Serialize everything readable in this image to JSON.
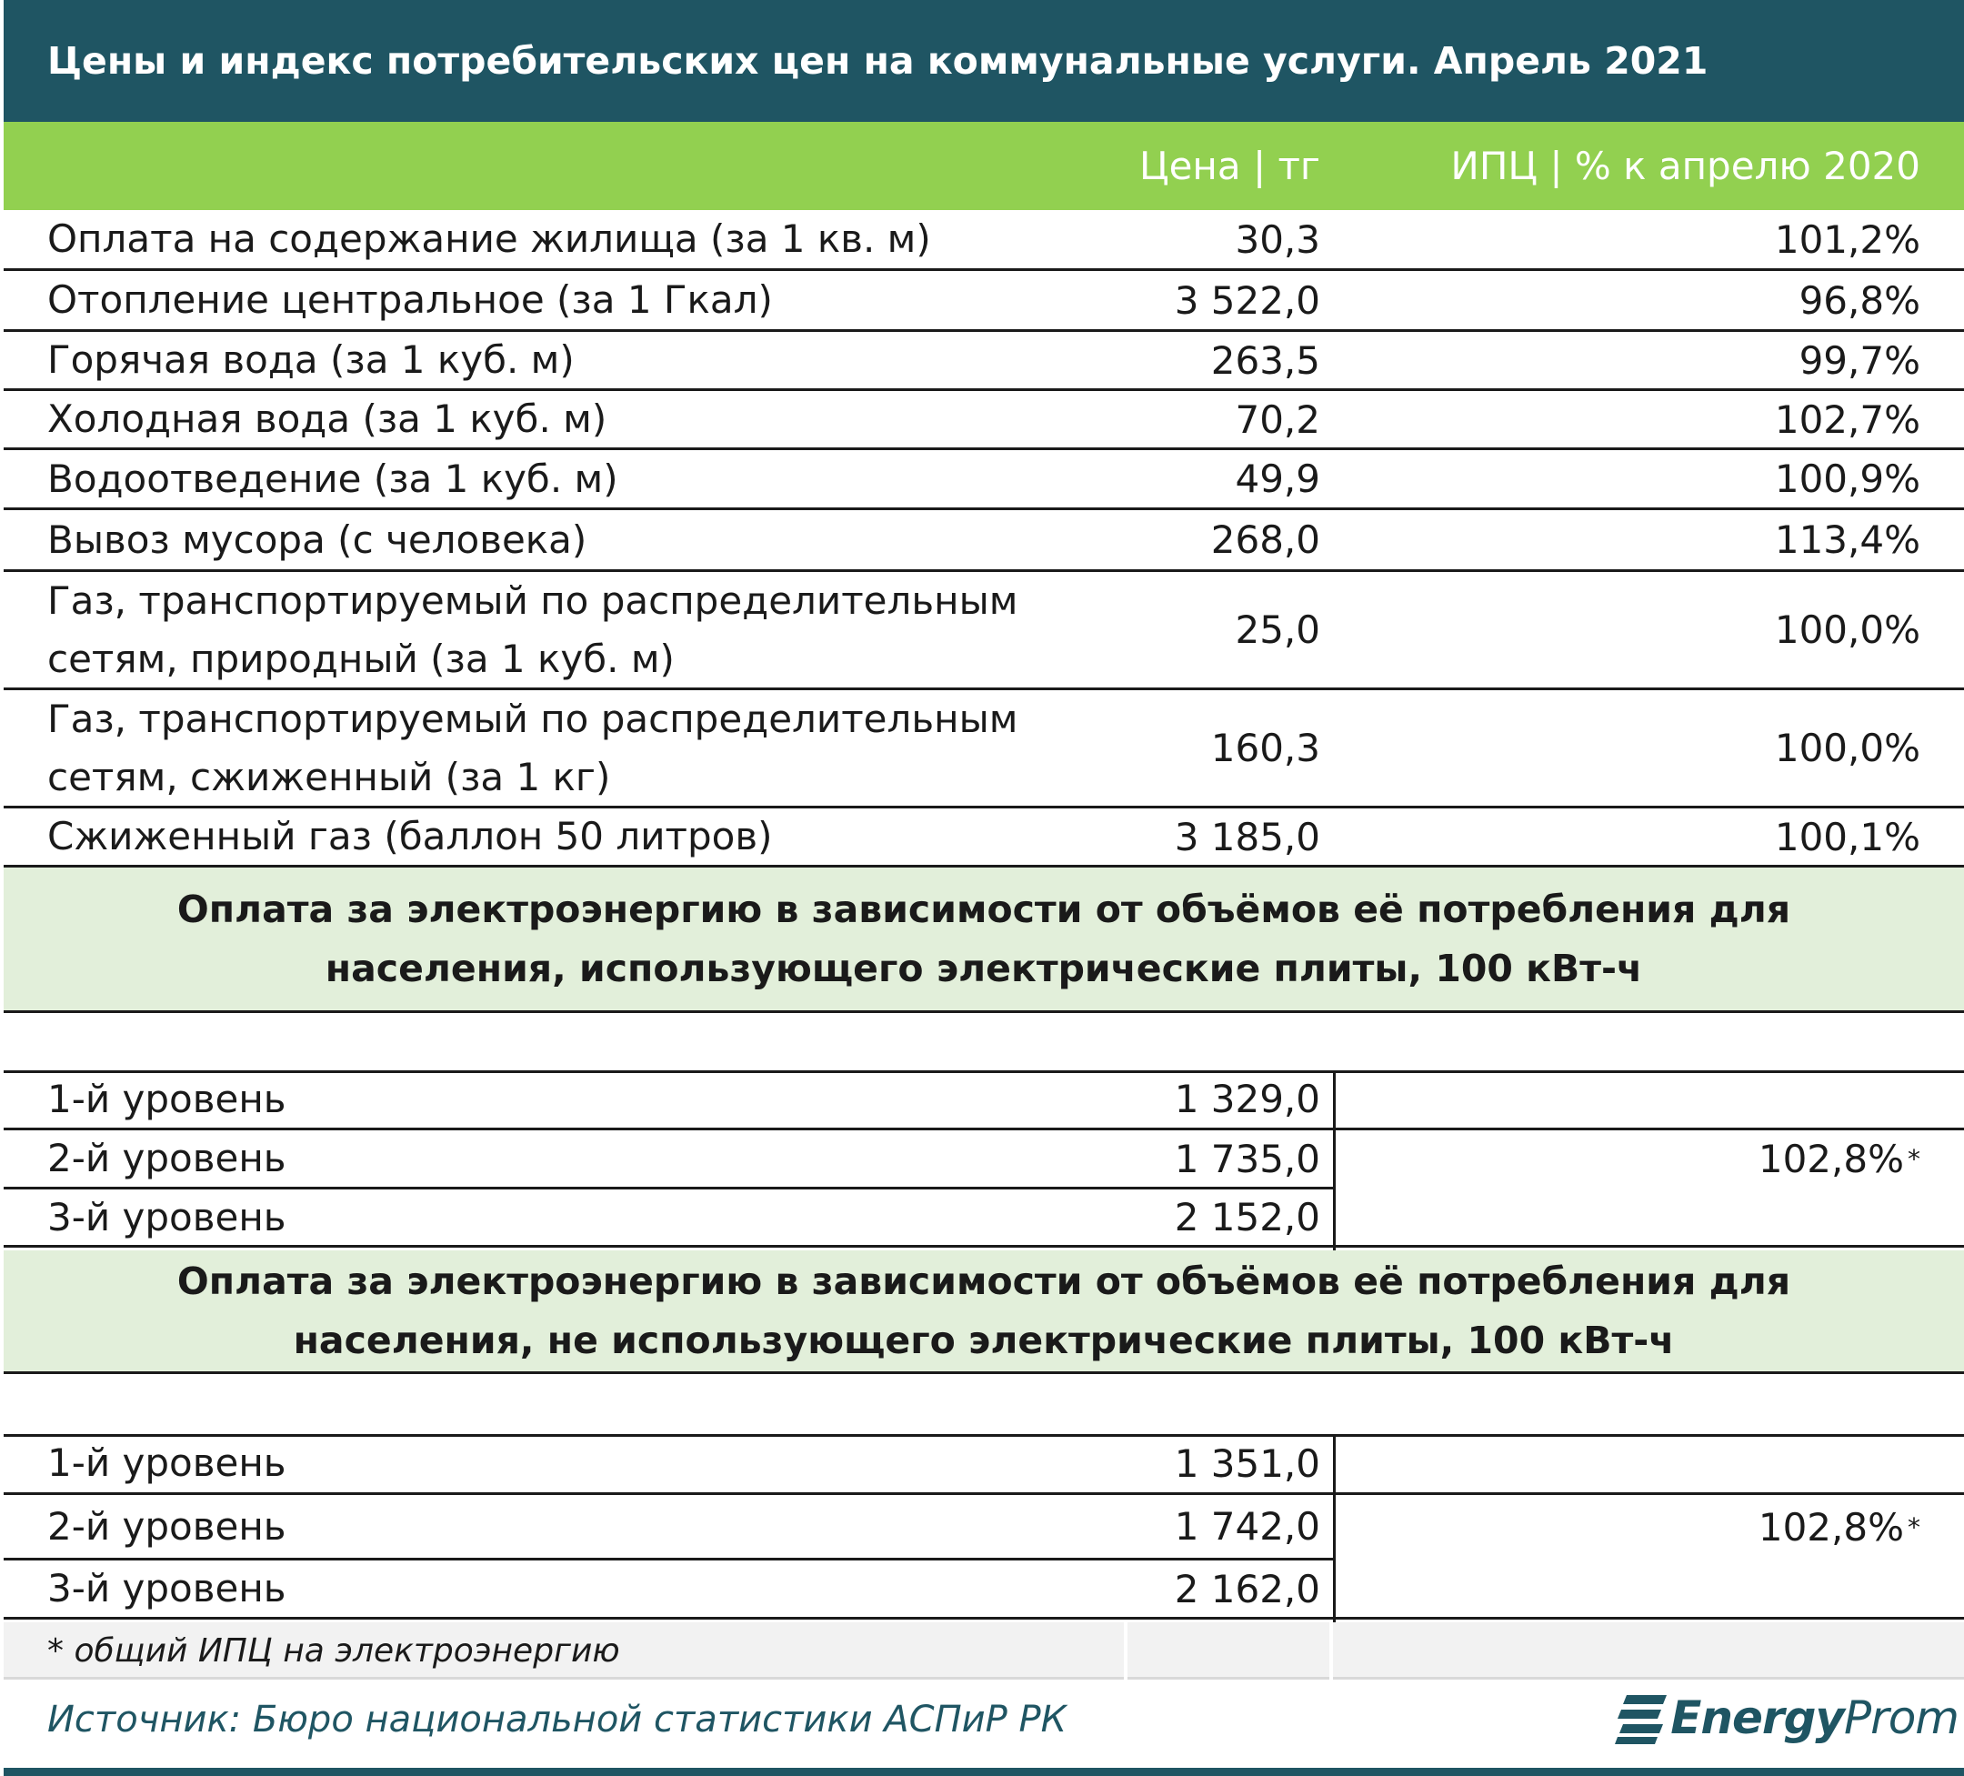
{
  "title": "Цены и индекс потребительских цен на коммунальные услуги. Апрель 2021",
  "headers": {
    "price": "Цена | тг",
    "cpi": "ИПЦ | % к апрелю 2020"
  },
  "rows": [
    {
      "label": "Оплата на содержание жилища (за 1 кв. м)",
      "price": "30,3",
      "cpi": "101,2%"
    },
    {
      "label": "Отопление центральное (за 1 Гкал)",
      "price": "3 522,0",
      "cpi": "96,8%"
    },
    {
      "label": "Горячая вода (за 1 куб. м)",
      "price": "263,5",
      "cpi": "99,7%"
    },
    {
      "label": "Холодная вода (за 1 куб. м)",
      "price": "70,2",
      "cpi": "102,7%"
    },
    {
      "label": "Водоотведение (за 1 куб. м)",
      "price": "49,9",
      "cpi": "100,9%"
    },
    {
      "label": "Вывоз мусора (с человека)",
      "price": "268,0",
      "cpi": "113,4%"
    },
    {
      "label": "Газ, транспортируемый по распределительным сетям, природный (за 1 куб. м)",
      "price": "25,0",
      "cpi": "100,0%"
    },
    {
      "label": "Газ, транспортируемый по распределительным сетям, сжиженный (за 1 кг)",
      "price": "160,3",
      "cpi": "100,0%"
    },
    {
      "label": "Сжиженный газ (баллон 50 литров)",
      "price": "3 185,0",
      "cpi": "100,1%"
    }
  ],
  "sections": [
    {
      "title": "Оплата за электроэнергию в зависимости от объёмов её потребления для населения, использующего электрические плиты, 100 кВт-ч",
      "levels": [
        {
          "label": "1-й уровень",
          "price": "1 329,0"
        },
        {
          "label": "2-й уровень",
          "price": "1 735,0"
        },
        {
          "label": "3-й уровень",
          "price": "2 152,0"
        }
      ],
      "cpi": "102,8%",
      "cpi_mark": "*"
    },
    {
      "title": "Оплата за электроэнергию в зависимости от объёмов её потребления для населения, не использующего электрические плиты, 100 кВт-ч",
      "levels": [
        {
          "label": "1-й уровень",
          "price": "1 351,0"
        },
        {
          "label": "2-й уровень",
          "price": "1 742,0"
        },
        {
          "label": "3-й уровень",
          "price": "2 162,0"
        }
      ],
      "cpi": "102,8%",
      "cpi_mark": "*"
    }
  ],
  "footnote": "* общий ИПЦ на электроэнергию",
  "source": "Источник: Бюро национальной статистики АСПиР РК",
  "logo": {
    "bold": "Energy",
    "light": "Prom"
  },
  "colors": {
    "title_bg": "#1f5563",
    "header_bg": "#92d050",
    "section_bg": "#e2efda",
    "footnote_bg": "#f2f2f2"
  }
}
